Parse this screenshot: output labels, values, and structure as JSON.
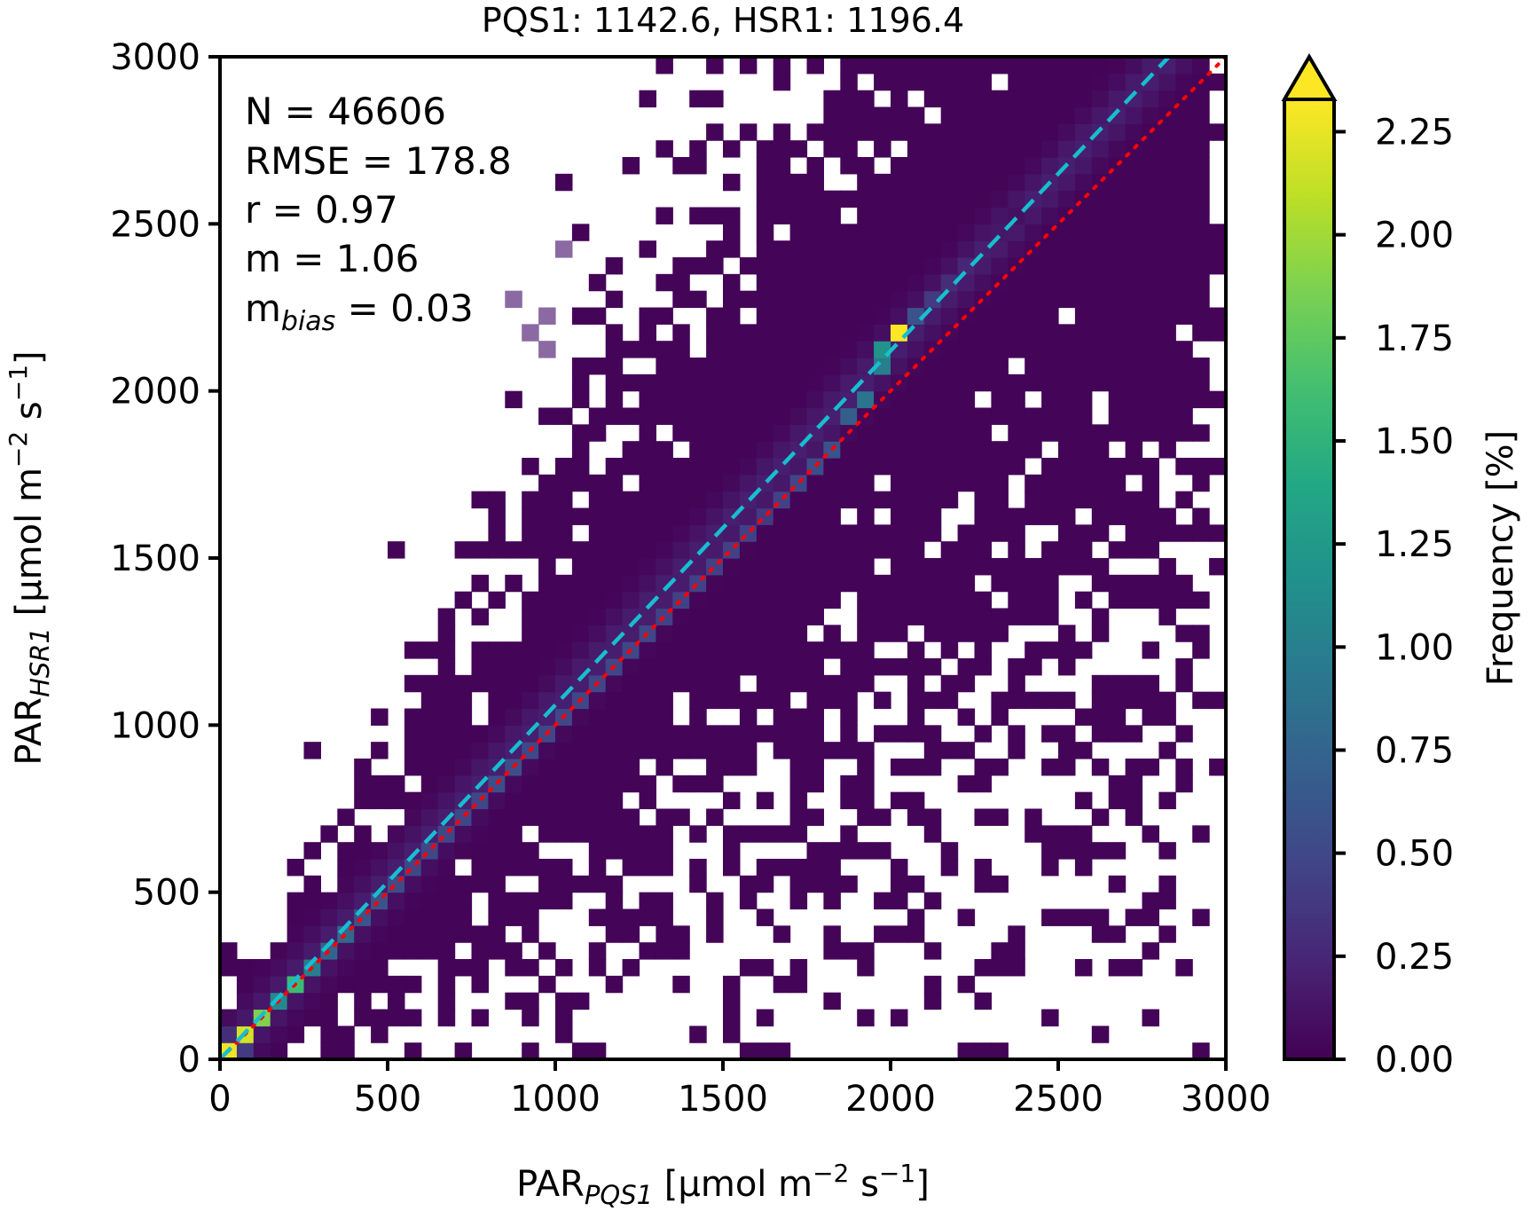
{
  "chart_data": {
    "type": "heatmap",
    "title": "PQS1: 1142.6, HSR1: 1196.4",
    "xlabel": {
      "base": "PAR",
      "sub": "PQS1",
      "unit_open": " [μmol m",
      "sup1": "−2",
      "mid": " s",
      "sup2": "−1",
      "close": "]"
    },
    "ylabel": {
      "base": "PAR",
      "sub": "HSR1",
      "unit_open": " [μmol m",
      "sup1": "−2",
      "mid": " s",
      "sup2": "−1",
      "close": "]"
    },
    "xlim": [
      0,
      3000
    ],
    "ylim": [
      0,
      3000
    ],
    "xticks": [
      "0",
      "500",
      "1000",
      "1500",
      "2000",
      "2500",
      "3000"
    ],
    "yticks": [
      "0",
      "500",
      "1000",
      "1500",
      "2000",
      "2500",
      "3000"
    ],
    "bin_width": 50,
    "stats": {
      "n": "N = 46606",
      "rmse": "RMSE = 178.8",
      "r": "r = 0.97",
      "m": "m = 1.06",
      "mbias_base": "m",
      "mbias_sub": "bias",
      "mbias_value": " = 0.03"
    },
    "lines": {
      "identity": {
        "style": "dotted",
        "color": "#ff0000",
        "slope": 1.0,
        "intercept": 0
      },
      "fit": {
        "style": "dashed",
        "color": "#17becf",
        "slope": 1.06,
        "intercept": 0
      }
    },
    "colorbar": {
      "label": "Frequency [%]",
      "vmin": 0.0,
      "vmax": 2.35,
      "extend": "max",
      "cmap": "viridis",
      "ticks": [
        "0.00",
        "0.25",
        "0.50",
        "0.75",
        "1.00",
        "1.25",
        "1.50",
        "1.75",
        "2.00",
        "2.25"
      ]
    },
    "highlight_region": {
      "note": "semi-transparent bins upper left",
      "color": "#8b6aa3",
      "x_range": [
        400,
        1050
      ],
      "y_range": [
        2100,
        2600
      ]
    },
    "peaks": [
      {
        "x": 25,
        "y": 25,
        "frequency": 2.3
      },
      {
        "x": 75,
        "y": 75,
        "frequency": 2.2
      },
      {
        "x": 125,
        "y": 125,
        "frequency": 1.9
      },
      {
        "x": 225,
        "y": 225,
        "frequency": 1.6
      },
      {
        "x": 2025,
        "y": 2175,
        "frequency": 2.35
      }
    ],
    "cells": [
      [
        0,
        0,
        2.3
      ],
      [
        50,
        50,
        2.2
      ],
      [
        50,
        0,
        0.4
      ],
      [
        0,
        50,
        0.3
      ],
      [
        100,
        100,
        1.9
      ],
      [
        150,
        150,
        1.1
      ],
      [
        200,
        200,
        1.6
      ],
      [
        250,
        250,
        1.0
      ],
      [
        300,
        300,
        0.75
      ],
      [
        350,
        350,
        0.8
      ],
      [
        400,
        400,
        0.6
      ],
      [
        450,
        450,
        0.6
      ],
      [
        500,
        500,
        0.55
      ],
      [
        550,
        550,
        0.5
      ],
      [
        600,
        600,
        0.5
      ],
      [
        650,
        650,
        0.5
      ],
      [
        700,
        700,
        0.5
      ],
      [
        750,
        750,
        0.5
      ],
      [
        800,
        800,
        0.55
      ],
      [
        850,
        850,
        0.55
      ],
      [
        900,
        900,
        0.5
      ],
      [
        950,
        950,
        0.5
      ],
      [
        1000,
        1000,
        0.5
      ],
      [
        1050,
        1050,
        0.5
      ],
      [
        1100,
        1100,
        0.5
      ],
      [
        1150,
        1150,
        0.5
      ],
      [
        1200,
        1200,
        0.5
      ],
      [
        1250,
        1250,
        0.5
      ],
      [
        1300,
        1300,
        0.45
      ],
      [
        1350,
        1350,
        0.45
      ],
      [
        1400,
        1400,
        0.45
      ],
      [
        1450,
        1450,
        0.45
      ],
      [
        1500,
        1500,
        0.45
      ],
      [
        1550,
        1550,
        0.45
      ],
      [
        1600,
        1600,
        0.4
      ],
      [
        1650,
        1650,
        0.45
      ],
      [
        1700,
        1700,
        0.5
      ],
      [
        1750,
        1750,
        0.55
      ],
      [
        1800,
        1800,
        0.6
      ],
      [
        1850,
        1900,
        0.7
      ],
      [
        1900,
        1950,
        0.9
      ],
      [
        1950,
        2050,
        1.0
      ],
      [
        2000,
        2150,
        2.35
      ],
      [
        1950,
        2100,
        1.2
      ],
      [
        2050,
        2200,
        0.6
      ],
      [
        2100,
        2250,
        0.4
      ],
      [
        2150,
        2300,
        0.3
      ],
      [
        2200,
        2350,
        0.25
      ],
      [
        2250,
        2400,
        0.2
      ],
      [
        2300,
        2450,
        0.15
      ],
      [
        2350,
        2500,
        0.1
      ]
    ]
  }
}
